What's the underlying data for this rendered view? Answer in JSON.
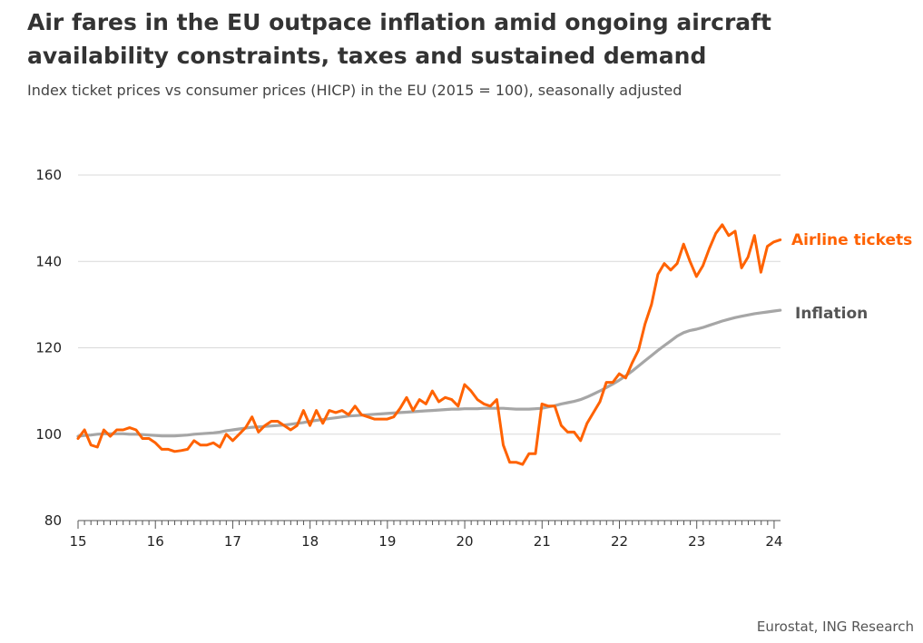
{
  "header": {
    "title": "Air fares in the EU outpace inflation amid ongoing aircraft availability constraints, taxes and sustained demand",
    "subtitle": "Index ticket prices vs consumer prices (HICP) in the EU (2015 = 100), seasonally adjusted"
  },
  "source": "Eurostat, ING Research",
  "chart_data": {
    "type": "line",
    "title": "Air fares in the EU outpace inflation amid ongoing aircraft availability constraints, taxes and sustained demand",
    "subtitle": "Index ticket prices vs consumer prices (HICP) in the EU (2015 = 100), seasonally adjusted",
    "xlabel": "",
    "ylabel": "",
    "xlim": [
      15,
      24.083
    ],
    "ylim": [
      80,
      160
    ],
    "yticks": [
      80,
      100,
      120,
      140,
      160
    ],
    "xticks": [
      15,
      16,
      17,
      18,
      19,
      20,
      21,
      22,
      23,
      24
    ],
    "xtick_labels": [
      "15",
      "16",
      "17",
      "18",
      "19",
      "20",
      "21",
      "22",
      "23",
      "24"
    ],
    "grid": "horizontal",
    "minor_ticks_per_year": 12,
    "series": [
      {
        "name": "Airline tickets",
        "color": "#FF6200",
        "x_start": 15,
        "step": 0.0833,
        "values": [
          99.0,
          101.0,
          97.5,
          97.0,
          101.0,
          99.5,
          101.0,
          101.0,
          101.5,
          101.0,
          99.0,
          99.0,
          98.0,
          96.5,
          96.5,
          96.0,
          96.2,
          96.5,
          98.5,
          97.5,
          97.5,
          98.0,
          97.0,
          100.0,
          98.5,
          100.0,
          101.5,
          104.0,
          100.5,
          102.0,
          103.0,
          103.0,
          102.0,
          101.0,
          102.0,
          105.5,
          102.0,
          105.5,
          102.5,
          105.5,
          105.0,
          105.5,
          104.5,
          106.5,
          104.5,
          104.0,
          103.5,
          103.5,
          103.5,
          104.0,
          106.0,
          108.5,
          105.5,
          108.0,
          107.0,
          110.0,
          107.5,
          108.5,
          108.0,
          106.5,
          111.5,
          110.0,
          108.0,
          107.0,
          106.5,
          108.0,
          97.5,
          93.5,
          93.5,
          93.0,
          95.5,
          95.5,
          107.0,
          106.5,
          106.5,
          102.0,
          100.5,
          100.5,
          98.5,
          102.5,
          105.0,
          107.5,
          112.0,
          112.0,
          114.0,
          113.0,
          116.5,
          119.5,
          125.5,
          130.0,
          137.0,
          139.5,
          138.0,
          139.5,
          144.0,
          140.0,
          136.5,
          139.0,
          143.0,
          146.5,
          148.5,
          146.0,
          147.0,
          138.5,
          141.0,
          146.0,
          137.5,
          143.5,
          144.5,
          145.0
        ]
      },
      {
        "name": "Inflation",
        "color": "#A6A6A6",
        "x_start": 15,
        "step": 0.0833,
        "values": [
          99.5,
          99.7,
          99.8,
          100.0,
          100.1,
          100.1,
          100.1,
          100.1,
          100.0,
          100.0,
          99.9,
          99.8,
          99.7,
          99.6,
          99.6,
          99.6,
          99.7,
          99.8,
          100.0,
          100.1,
          100.2,
          100.3,
          100.5,
          100.8,
          101.0,
          101.2,
          101.4,
          101.6,
          101.7,
          101.8,
          101.9,
          102.0,
          102.1,
          102.3,
          102.5,
          102.7,
          103.0,
          103.2,
          103.4,
          103.6,
          103.8,
          104.0,
          104.2,
          104.3,
          104.4,
          104.5,
          104.6,
          104.7,
          104.8,
          104.9,
          105.0,
          105.1,
          105.2,
          105.3,
          105.4,
          105.5,
          105.6,
          105.7,
          105.8,
          105.8,
          105.9,
          105.9,
          105.9,
          106.0,
          106.0,
          106.0,
          106.0,
          105.9,
          105.8,
          105.8,
          105.8,
          105.9,
          106.0,
          106.3,
          106.6,
          107.0,
          107.3,
          107.6,
          108.0,
          108.6,
          109.3,
          110.0,
          110.8,
          111.6,
          112.5,
          113.5,
          114.6,
          115.8,
          117.0,
          118.2,
          119.4,
          120.5,
          121.6,
          122.7,
          123.5,
          124.0,
          124.3,
          124.7,
          125.2,
          125.7,
          126.2,
          126.6,
          127.0,
          127.3,
          127.6,
          127.9,
          128.1,
          128.3,
          128.5,
          128.7
        ]
      }
    ]
  }
}
